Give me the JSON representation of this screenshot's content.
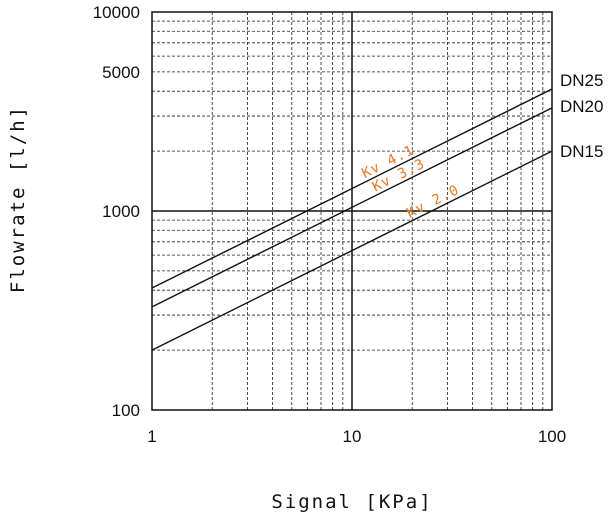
{
  "chart_data": {
    "type": "line",
    "x_scale": "log",
    "y_scale": "log",
    "xlim": [
      1,
      100
    ],
    "ylim": [
      100,
      10000
    ],
    "xlabel": "Signal [KPa]",
    "ylabel": "Flowrate [l/h]",
    "x_ticks": [
      {
        "value": 1,
        "label": "1"
      },
      {
        "value": 10,
        "label": "10"
      },
      {
        "value": 100,
        "label": "100"
      }
    ],
    "y_ticks": [
      {
        "value": 100,
        "label": "100"
      },
      {
        "value": 1000,
        "label": "1000"
      },
      {
        "value": 5000,
        "label": "5000"
      },
      {
        "value": 10000,
        "label": "10000"
      }
    ],
    "grid": true,
    "series": [
      {
        "name": "DN25",
        "annotation": "Kv 4.1",
        "x": [
          1,
          100
        ],
        "y": [
          410,
          4100
        ],
        "color": "#111111"
      },
      {
        "name": "DN20",
        "annotation": "Kv 3.3",
        "x": [
          1,
          100
        ],
        "y": [
          330,
          3300
        ],
        "color": "#111111"
      },
      {
        "name": "DN15",
        "annotation": "Kv 2.0",
        "x": [
          1,
          100
        ],
        "y": [
          200,
          2000
        ],
        "color": "#111111"
      }
    ],
    "annotation_color": "#e8782a"
  }
}
